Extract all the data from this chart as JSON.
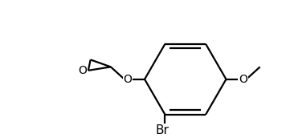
{
  "background_color": "#ffffff",
  "line_color": "#000000",
  "line_width": 1.6,
  "font_size": 10,
  "label_Br": "Br",
  "label_O1": "O",
  "label_O2": "O",
  "label_O3": "O",
  "figsize": [
    3.56,
    1.72
  ],
  "dpi": 100
}
